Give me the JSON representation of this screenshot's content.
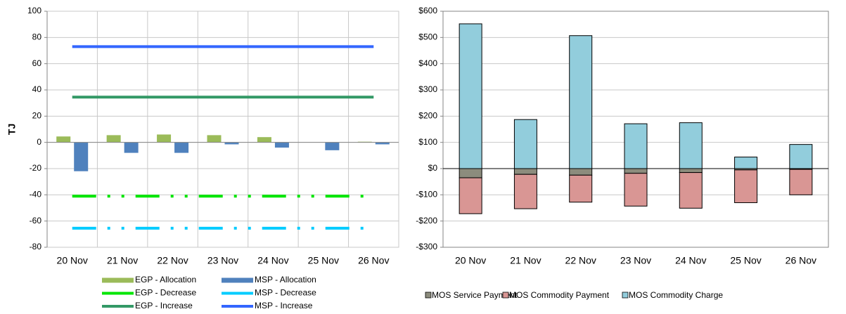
{
  "chart_data": [
    {
      "type": "bar",
      "y_label": "TJ",
      "grid": "both",
      "legend": "bottom",
      "categories": [
        "20 Nov",
        "21 Nov",
        "22 Nov",
        "23 Nov",
        "24 Nov",
        "25 Nov",
        "26 Nov"
      ],
      "ylim": [
        -80,
        100
      ],
      "yticks": [
        -80,
        -60,
        -40,
        -20,
        0,
        20,
        40,
        60,
        80,
        100
      ],
      "series": [
        {
          "name": "EGP - Allocation",
          "mark": "bar",
          "color": "#9bbb59",
          "values": [
            4.5,
            5.5,
            6,
            5.5,
            4,
            0,
            0.5
          ]
        },
        {
          "name": "MSP - Allocation",
          "mark": "bar",
          "color": "#4f81bd",
          "values": [
            -22,
            -8,
            -8,
            -1.5,
            -4,
            -6,
            -1.5
          ]
        },
        {
          "name": "EGP - Decrease",
          "mark": "line",
          "line_style": "dash-dot",
          "color": "#00e600",
          "values": [
            -41,
            -41,
            -41,
            -41,
            -41,
            -41,
            -41
          ]
        },
        {
          "name": "MSP - Decrease",
          "mark": "line",
          "line_style": "dash-dot",
          "color": "#00ccff",
          "values": [
            -65.5,
            -65.5,
            -65.5,
            -65.5,
            -65.5,
            -65.5,
            -65.5
          ]
        },
        {
          "name": "EGP - Increase",
          "mark": "line",
          "line_style": "solid",
          "color": "#339966",
          "values": [
            34.5,
            34.5,
            34.5,
            34.5,
            34.5,
            34.5,
            34.5
          ]
        },
        {
          "name": "MSP - Increase",
          "mark": "line",
          "line_style": "solid",
          "color": "#3366ff",
          "values": [
            73,
            73,
            73,
            73,
            73,
            73,
            73
          ]
        }
      ]
    },
    {
      "type": "stacked-bar",
      "grid": "horizontal",
      "legend": "bottom",
      "categories": [
        "20 Nov",
        "21 Nov",
        "22 Nov",
        "23 Nov",
        "24 Nov",
        "25 Nov",
        "26 Nov"
      ],
      "ylim": [
        -300,
        600
      ],
      "yticks": [
        {
          "value": -300,
          "label": "-$300"
        },
        {
          "value": -200,
          "label": "-$200"
        },
        {
          "value": -100,
          "label": "-$100"
        },
        {
          "value": 0,
          "label": "$0"
        },
        {
          "value": 100,
          "label": "$100"
        },
        {
          "value": 200,
          "label": "$200"
        },
        {
          "value": 300,
          "label": "$300"
        },
        {
          "value": 400,
          "label": "$400"
        },
        {
          "value": 500,
          "label": "$500"
        },
        {
          "value": 600,
          "label": "$600"
        }
      ],
      "series": [
        {
          "name": "MOS Service Payment",
          "color": "#8c8c7d",
          "values": [
            -35,
            -22,
            -25,
            -18,
            -15,
            -5,
            -3
          ]
        },
        {
          "name": "MOS Commodity Payment",
          "color": "#d99694",
          "values": [
            -137,
            -131,
            -103,
            -125,
            -136,
            -125,
            -97
          ]
        },
        {
          "name": "MOS Commodity Charge",
          "color": "#92cddc",
          "values": [
            552,
            187,
            507,
            171,
            175,
            44,
            92
          ]
        }
      ]
    }
  ]
}
